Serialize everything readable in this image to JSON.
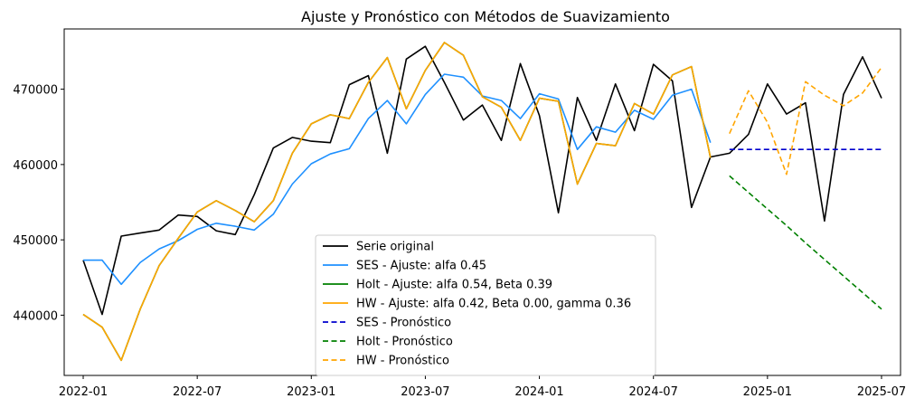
{
  "chart_data": {
    "type": "line",
    "title": "Ajuste y Pronóstico con Métodos de Suavizamiento",
    "xlabel": "",
    "ylabel": "",
    "x_start": "2022-01",
    "xlim": [
      "2021-12",
      "2025-08"
    ],
    "ylim": [
      432000,
      478000
    ],
    "x_ticks": [
      {
        "label": "2022-01",
        "month": "2022-01"
      },
      {
        "label": "2022-07",
        "month": "2022-07"
      },
      {
        "label": "2023-01",
        "month": "2023-01"
      },
      {
        "label": "2023-07",
        "month": "2023-07"
      },
      {
        "label": "2024-01",
        "month": "2024-01"
      },
      {
        "label": "2024-07",
        "month": "2024-07"
      },
      {
        "label": "2025-01",
        "month": "2025-01"
      },
      {
        "label": "2025-07",
        "month": "2025-07"
      }
    ],
    "y_ticks": [
      {
        "label": "440000",
        "value": 440000
      },
      {
        "label": "450000",
        "value": 450000
      },
      {
        "label": "460000",
        "value": 460000
      },
      {
        "label": "470000",
        "value": 470000
      }
    ],
    "grid": false,
    "legend_position": "lower-center",
    "series": [
      {
        "name": "Serie original",
        "color": "#000000",
        "dash": "solid",
        "x_start": "2022-01",
        "values": [
          447300,
          440100,
          450500,
          450900,
          451300,
          453300,
          453100,
          451200,
          450700,
          456000,
          462200,
          463600,
          463100,
          462900,
          470600,
          471800,
          461500,
          474000,
          475700,
          470900,
          465900,
          467900,
          463200,
          473400,
          466500,
          453600,
          468900,
          463200,
          470700,
          464500,
          473300,
          471100,
          454300,
          461000,
          461500,
          464000,
          470700,
          466700,
          468200,
          452500,
          469300,
          474300,
          468800
        ]
      },
      {
        "name": "SES - Ajuste: alfa 0.45",
        "color": "#1e90ff",
        "dash": "solid",
        "x_start": "2022-01",
        "values": [
          447300,
          447300,
          444100,
          447000,
          448800,
          449900,
          451400,
          452200,
          451800,
          451300,
          453400,
          457400,
          460100,
          461400,
          462100,
          466100,
          468500,
          465400,
          469300,
          472000,
          471600,
          469100,
          468500,
          466100,
          469400,
          468700,
          462000,
          465000,
          464300,
          467200,
          466000,
          469200,
          470000,
          462900
        ]
      },
      {
        "name": "Holt - Ajuste: alfa 0.54, Beta 0.39",
        "color": "#008000",
        "dash": "solid",
        "x_start": "2022-01",
        "values": [
          440100,
          438400,
          434000,
          440800,
          446600,
          450200,
          453700,
          455200,
          453900,
          452400,
          455200,
          461500,
          465400,
          466600,
          466100,
          470900,
          474200,
          467400,
          472500,
          476200,
          474500,
          469000,
          467600,
          463200,
          468800,
          468400,
          457400,
          462800,
          462500,
          468100,
          466700,
          471900,
          473000,
          460900
        ]
      },
      {
        "name": "HW - Ajuste: alfa 0.42, Beta 0.00, gamma 0.36",
        "color": "#ffa500",
        "dash": "solid",
        "x_start": "2022-01",
        "values": [
          440100,
          438400,
          434000,
          440800,
          446600,
          450200,
          453700,
          455200,
          453900,
          452400,
          455200,
          461500,
          465400,
          466600,
          466100,
          470900,
          474200,
          467400,
          472500,
          476200,
          474500,
          469000,
          467600,
          463200,
          468800,
          468400,
          457400,
          462800,
          462500,
          468100,
          466700,
          471900,
          473000,
          460900
        ]
      },
      {
        "name": "SES - Pronóstico",
        "color": "#0000cd",
        "dash": "dashed",
        "x_start": "2024-11",
        "values": [
          462000,
          462000,
          462000,
          462000,
          462000,
          462000,
          462000,
          462000,
          462000
        ]
      },
      {
        "name": "Holt - Pronóstico",
        "color": "#008000",
        "dash": "dashed",
        "x_start": "2024-11",
        "values": [
          458500,
          456300,
          454100,
          451900,
          449600,
          447400,
          445200,
          443000,
          440800
        ]
      },
      {
        "name": "HW - Pronóstico",
        "color": "#ffa500",
        "dash": "dashed",
        "x_start": "2024-11",
        "values": [
          464100,
          469800,
          465600,
          458700,
          471000,
          469200,
          467800,
          469500,
          472900
        ]
      }
    ]
  }
}
